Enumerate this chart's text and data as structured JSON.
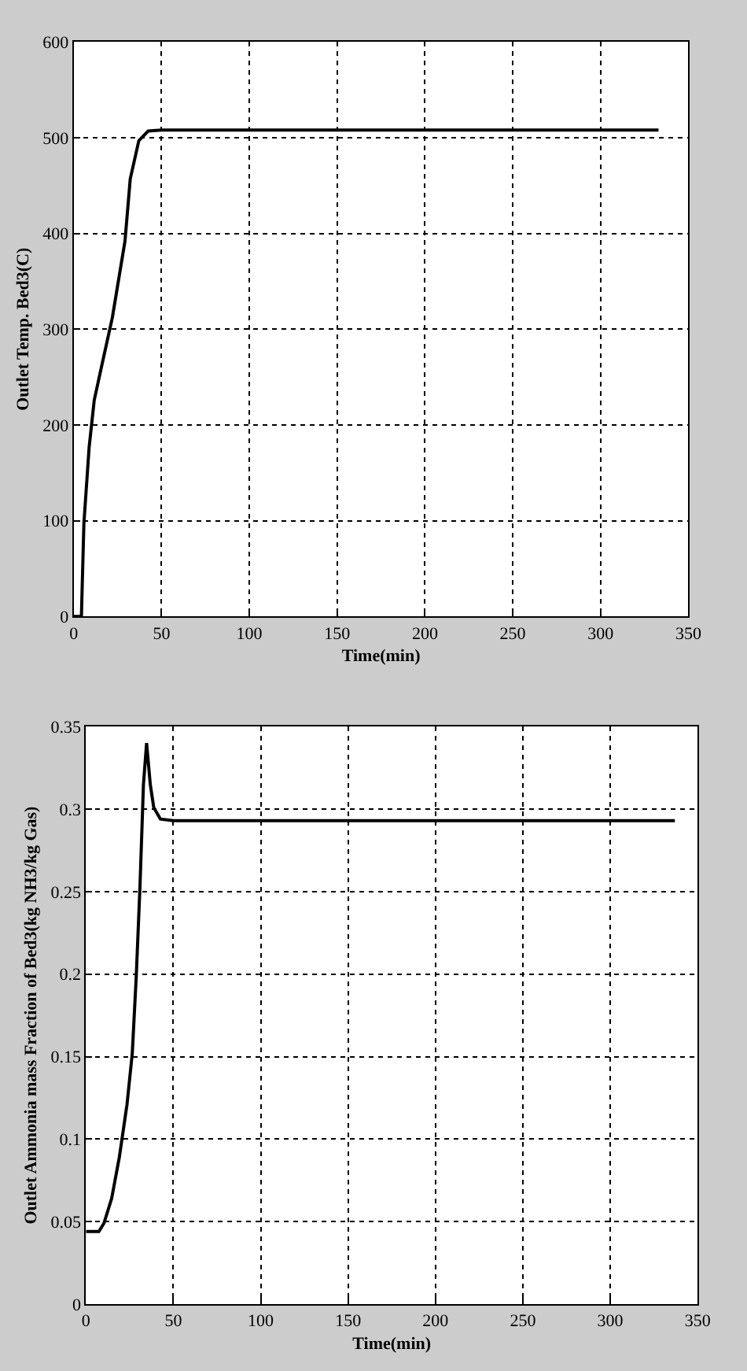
{
  "chart_data": [
    {
      "type": "line",
      "xlabel": "Time(min)",
      "ylabel": "Outlet Temp. Bed3(C)",
      "xlim": [
        0,
        350
      ],
      "ylim": [
        0,
        600
      ],
      "xticks": [
        0,
        50,
        100,
        150,
        200,
        250,
        300,
        350
      ],
      "yticks": [
        0,
        100,
        200,
        300,
        400,
        500,
        600
      ],
      "grid": true,
      "x": [
        0,
        4.4,
        5.8,
        8.8,
        11.7,
        16.1,
        22,
        29.2,
        32.2,
        37.1,
        42.4,
        50,
        333
      ],
      "series": [
        {
          "color": "#000000",
          "values": [
            0,
            0,
            97,
            177,
            226,
            263,
            312,
            392,
            457,
            497,
            507,
            508,
            508
          ]
        }
      ]
    },
    {
      "type": "line",
      "xlabel": "Time(min)",
      "ylabel": "Outlet Ammonia mass Fraction of Bed3(kg NH3/kg Gas)",
      "xlim": [
        0,
        350
      ],
      "ylim": [
        0,
        0.35
      ],
      "xticks": [
        0,
        50,
        100,
        150,
        200,
        250,
        300,
        350
      ],
      "yticks": [
        0,
        0.05,
        0.1,
        0.15,
        0.2,
        0.25,
        0.3,
        0.35
      ],
      "grid": true,
      "x": [
        0,
        7.4,
        10.3,
        14.7,
        19.1,
        23.5,
        26.5,
        28.8,
        30.9,
        32.9,
        34.7,
        36.8,
        38.8,
        42.6,
        50,
        337
      ],
      "series": [
        {
          "color": "#000000",
          "values": [
            0.044,
            0.044,
            0.049,
            0.064,
            0.089,
            0.121,
            0.152,
            0.199,
            0.253,
            0.315,
            0.34,
            0.315,
            0.301,
            0.294,
            0.293,
            0.293
          ]
        }
      ]
    }
  ]
}
